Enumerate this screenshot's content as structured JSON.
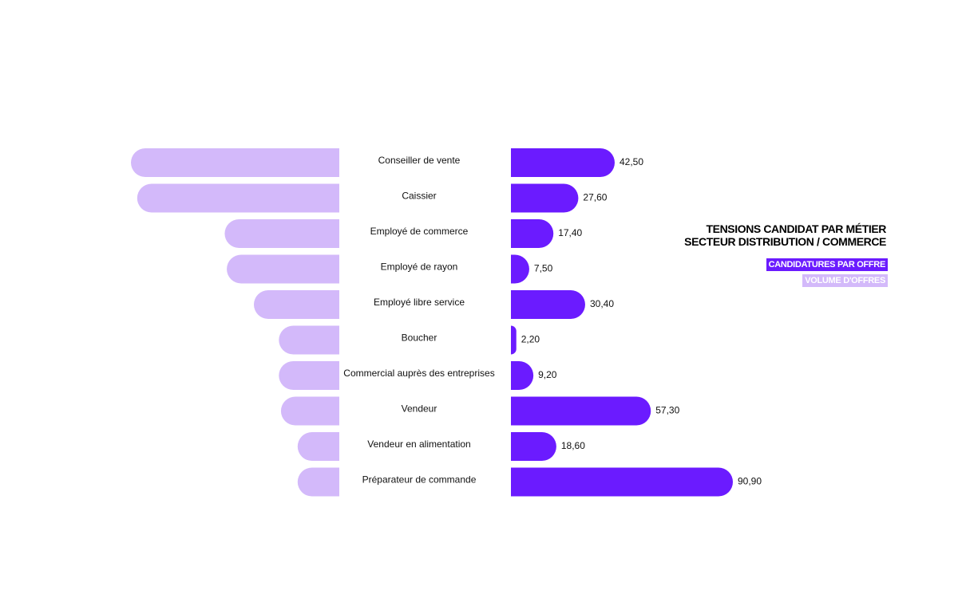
{
  "chart_data": {
    "type": "bar",
    "title": "TENSIONS CANDIDAT PAR MÉTIER",
    "subtitle": "SECTEUR DISTRIBUTION / COMMERCE",
    "categories": [
      "Conseiller de vente",
      "Caissier",
      "Employé de commerce",
      "Employé de rayon",
      "Employé libre service",
      "Boucher",
      "Commercial auprès des entreprises",
      "Vendeur",
      "Vendeur en alimentation",
      "Préparateur de commande"
    ],
    "series": [
      {
        "name": "CANDIDATURES PAR OFFRE",
        "color": "#6b1bff",
        "values": [
          42.5,
          27.6,
          17.4,
          7.5,
          30.4,
          2.2,
          9.2,
          57.3,
          18.6,
          90.9
        ],
        "labels": [
          "42,50",
          "27,60",
          "17,40",
          "7,50",
          "30,40",
          "2,20",
          "9,20",
          "57,30",
          "18,60",
          "90,90"
        ]
      },
      {
        "name": "VOLUME D'OFFRES",
        "color": "#d3b9fa",
        "values": [
          100,
          97,
          55,
          54,
          41,
          29,
          29,
          28,
          20,
          20
        ]
      }
    ],
    "legend_position": "right",
    "grid": false
  }
}
